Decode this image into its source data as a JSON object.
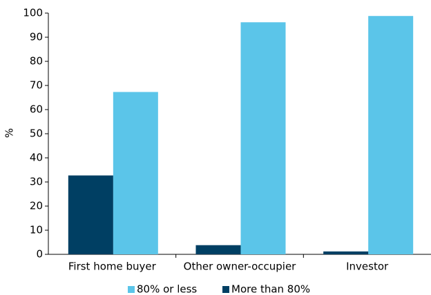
{
  "chart_data": {
    "type": "bar",
    "y_label": "%",
    "categories": [
      "First home buyer",
      "Other owner-occupier",
      "Investor"
    ],
    "series": [
      {
        "name": "80% or less",
        "color": "#5bc5e9",
        "values": [
          67.3,
          96.2,
          98.8
        ]
      },
      {
        "name": "More than 80%",
        "color": "#003f63",
        "values": [
          32.7,
          3.8,
          1.2
        ]
      }
    ],
    "ylim": [
      0,
      100
    ],
    "yticks": [
      0,
      10,
      20,
      30,
      40,
      50,
      60,
      70,
      80,
      90,
      100
    ],
    "grid": false,
    "legend": "bottom"
  }
}
